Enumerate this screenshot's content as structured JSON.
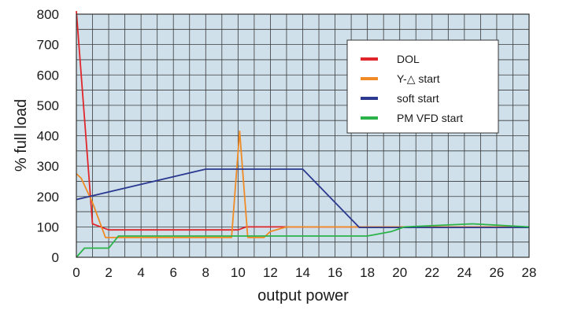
{
  "chart_data": {
    "type": "line",
    "title": "",
    "xlabel": "output power",
    "ylabel": "% full load",
    "xlim": [
      0,
      28
    ],
    "ylim": [
      0,
      800
    ],
    "xticks": [
      "0",
      "2",
      "4",
      "6",
      "8",
      "10",
      "12",
      "14",
      "16",
      "18",
      "20",
      "22",
      "24",
      "26",
      "28"
    ],
    "yticks": [
      "0",
      "100",
      "200",
      "300",
      "400",
      "500",
      "600",
      "700",
      "800"
    ],
    "grid": true,
    "legend_position": "top-right",
    "background_color": "#cfe0ea",
    "series": [
      {
        "name": "DOL",
        "color": "#e0262b",
        "x": [
          0,
          1,
          2,
          10,
          10.5,
          28
        ],
        "y": [
          810,
          110,
          90,
          90,
          100,
          100
        ]
      },
      {
        "name": "Y-△ start",
        "color": "#f08a24",
        "x": [
          0,
          0.3,
          1,
          1.8,
          9.6,
          10.1,
          10.6,
          11.6,
          12,
          13,
          28
        ],
        "y": [
          275,
          260,
          180,
          65,
          65,
          415,
          65,
          65,
          85,
          100,
          100
        ]
      },
      {
        "name": "soft start",
        "color": "#2b3990",
        "x": [
          0,
          8,
          14,
          17.5,
          28
        ],
        "y": [
          190,
          290,
          290,
          98,
          98
        ]
      },
      {
        "name": "PM VFD start",
        "color": "#2bb34a",
        "x": [
          0,
          0.5,
          1,
          2,
          2.6,
          18,
          19.5,
          20.3,
          24.5,
          28
        ],
        "y": [
          0,
          30,
          30,
          30,
          70,
          70,
          85,
          100,
          110,
          100
        ]
      }
    ]
  }
}
